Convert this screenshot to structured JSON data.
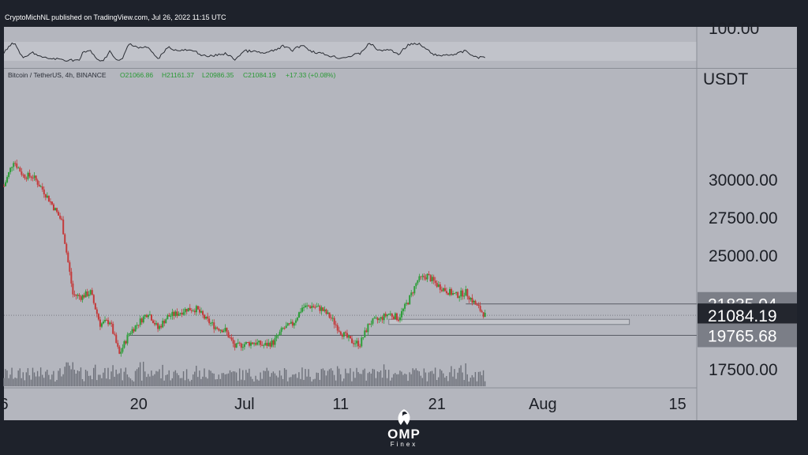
{
  "header": {
    "published": "CryptoMichNL published on TradingView.com, Jul 26, 2022 11:15 UTC"
  },
  "logo": {
    "name": "OMP",
    "sub": "Finex"
  },
  "colors": {
    "up": "#2e9e3a",
    "down": "#c43a3a",
    "panel": "#b4b6be",
    "background": "#1e222b"
  },
  "chart_data": {
    "type": "candlestick",
    "symbol_label": "Bitcoin / TetherUS, 4h, BINANCE",
    "ohlc_label": {
      "open": "O21066.86",
      "high": "H21161.37",
      "low": "L20986.35",
      "close": "C21084.19",
      "change": "+17.33 (+0.08%)"
    },
    "y_unit": "USDT",
    "y_ticks": [
      "30000.00",
      "27500.00",
      "25000.00",
      "17500.00"
    ],
    "oscillator_tick": "100.00",
    "x_ticks": [
      "6",
      "20",
      "Jul",
      "11",
      "21",
      "Aug",
      "15"
    ],
    "x_tick_dates": [
      "2022-06-06",
      "2022-06-20",
      "2022-07-01",
      "2022-07-11",
      "2022-07-21",
      "2022-08-01",
      "2022-08-15"
    ],
    "x_range": [
      "2022-06-06",
      "2022-08-17"
    ],
    "ylim": [
      16300,
      36200
    ],
    "price_labels": [
      {
        "text": "21835.04",
        "value": 21835.04,
        "style": "gray"
      },
      {
        "text": "21084.19",
        "value": 21084.19,
        "style": "dark"
      },
      {
        "text": "19765.68",
        "value": 19765.68,
        "style": "gray"
      }
    ],
    "levels": [
      {
        "value": 21835.04,
        "from": "2022-07-24",
        "to": "2022-08-17"
      },
      {
        "value": 19765.68,
        "from": "2022-06-19",
        "to": "2022-08-17"
      }
    ],
    "zone": {
      "top": 20820,
      "bottom": 20480,
      "from": "2022-07-16",
      "to": "2022-08-10"
    },
    "close_path": [
      [
        "2022-06-06",
        29600
      ],
      [
        "2022-06-07",
        31300
      ],
      [
        "2022-06-08",
        30300
      ],
      [
        "2022-06-09",
        30250
      ],
      [
        "2022-06-10",
        29400
      ],
      [
        "2022-06-11",
        28400
      ],
      [
        "2022-06-12",
        27300
      ],
      [
        "2022-06-13",
        23200
      ],
      [
        "2022-06-13",
        22500
      ],
      [
        "2022-06-14",
        22300
      ],
      [
        "2022-06-15",
        22600
      ],
      [
        "2022-06-16",
        20500
      ],
      [
        "2022-06-17",
        20700
      ],
      [
        "2022-06-18",
        18500
      ],
      [
        "2022-06-19",
        19900
      ],
      [
        "2022-06-20",
        20600
      ],
      [
        "2022-06-21",
        21300
      ],
      [
        "2022-06-22",
        20200
      ],
      [
        "2022-06-23",
        21000
      ],
      [
        "2022-06-24",
        21200
      ],
      [
        "2022-06-25",
        21500
      ],
      [
        "2022-06-26",
        21500
      ],
      [
        "2022-06-27",
        20800
      ],
      [
        "2022-06-28",
        20300
      ],
      [
        "2022-06-29",
        20100
      ],
      [
        "2022-06-30",
        19000
      ],
      [
        "2022-07-01",
        19200
      ],
      [
        "2022-07-02",
        19300
      ],
      [
        "2022-07-03",
        19100
      ],
      [
        "2022-07-04",
        19300
      ],
      [
        "2022-07-05",
        20200
      ],
      [
        "2022-07-06",
        20500
      ],
      [
        "2022-07-07",
        21600
      ],
      [
        "2022-07-08",
        21700
      ],
      [
        "2022-07-09",
        21500
      ],
      [
        "2022-07-10",
        20900
      ],
      [
        "2022-07-11",
        20000
      ],
      [
        "2022-07-12",
        19400
      ],
      [
        "2022-07-13",
        19200
      ],
      [
        "2022-07-14",
        20600
      ],
      [
        "2022-07-15",
        20800
      ],
      [
        "2022-07-16",
        21200
      ],
      [
        "2022-07-17",
        20900
      ],
      [
        "2022-07-18",
        22000
      ],
      [
        "2022-07-19",
        23400
      ],
      [
        "2022-07-20",
        23700
      ],
      [
        "2022-07-21",
        23100
      ],
      [
        "2022-07-22",
        22700
      ],
      [
        "2022-07-23",
        22400
      ],
      [
        "2022-07-24",
        22600
      ],
      [
        "2022-07-25",
        21800
      ],
      [
        "2022-07-26",
        21084
      ]
    ]
  }
}
